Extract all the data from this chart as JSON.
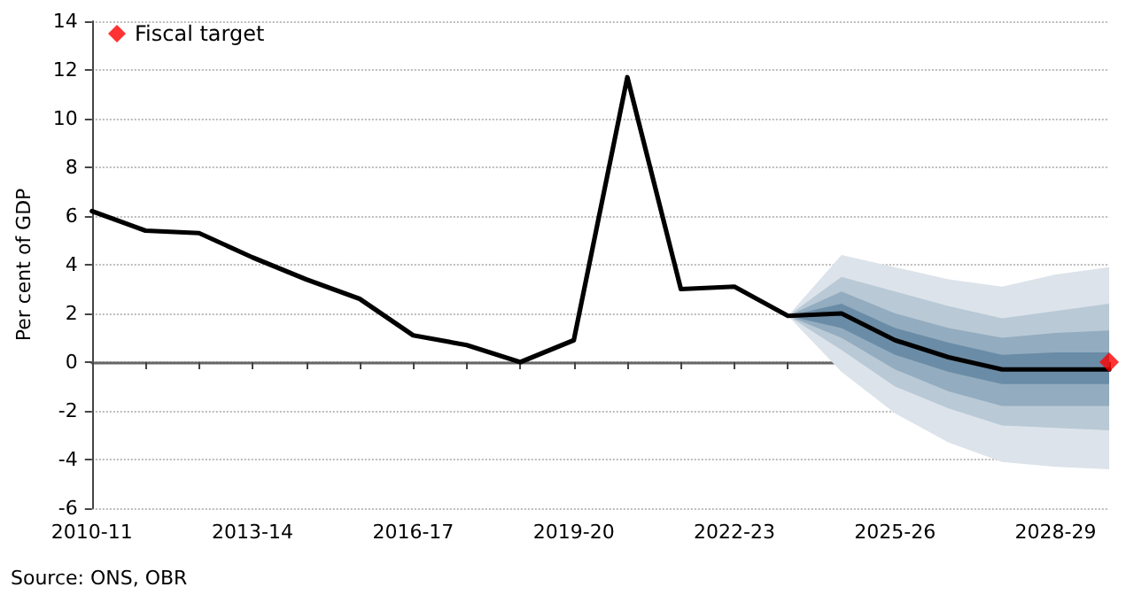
{
  "chart_data": {
    "type": "line",
    "ylabel": "Per cent of GDP",
    "annotations": [
      "Source: ONS, OBR"
    ],
    "categories": [
      "2010-11",
      null,
      null,
      "2013-14",
      null,
      null,
      "2016-17",
      null,
      null,
      "2019-20",
      null,
      null,
      "2022-23",
      null,
      null,
      "2025-26",
      null,
      null,
      "2028-29",
      null
    ],
    "series": [
      {
        "type": "area",
        "color": "#dce3ea",
        "values": [
          null,
          null,
          null,
          null,
          null,
          null,
          null,
          null,
          null,
          null,
          null,
          null,
          null,
          null,
          null,
          null,
          null,
          null,
          null,
          null
        ],
        "lower": [
          null,
          null,
          null,
          null,
          null,
          null,
          null,
          null,
          null,
          null,
          null,
          null,
          null,
          1.9,
          -0.4,
          -2.1,
          -3.3,
          -4.1,
          -4.3,
          -4.4
        ],
        "upper": [
          null,
          null,
          null,
          null,
          null,
          null,
          null,
          null,
          null,
          null,
          null,
          null,
          null,
          1.9,
          4.4,
          3.9,
          3.4,
          3.1,
          3.6,
          3.9
        ]
      },
      {
        "type": "area",
        "color": "#b9c9d6",
        "values": [
          null,
          null,
          null,
          null,
          null,
          null,
          null,
          null,
          null,
          null,
          null,
          null,
          null,
          null,
          null,
          null,
          null,
          null,
          null,
          null
        ],
        "lower": [
          null,
          null,
          null,
          null,
          null,
          null,
          null,
          null,
          null,
          null,
          null,
          null,
          null,
          1.9,
          0.5,
          -1.0,
          -1.9,
          -2.6,
          -2.7,
          -2.8
        ],
        "upper": [
          null,
          null,
          null,
          null,
          null,
          null,
          null,
          null,
          null,
          null,
          null,
          null,
          null,
          1.9,
          3.5,
          2.9,
          2.3,
          1.8,
          2.1,
          2.4
        ]
      },
      {
        "type": "area",
        "color": "#93acbf",
        "values": [
          null,
          null,
          null,
          null,
          null,
          null,
          null,
          null,
          null,
          null,
          null,
          null,
          null,
          null,
          null,
          null,
          null,
          null,
          null,
          null
        ],
        "lower": [
          null,
          null,
          null,
          null,
          null,
          null,
          null,
          null,
          null,
          null,
          null,
          null,
          null,
          1.9,
          1.0,
          -0.3,
          -1.2,
          -1.8,
          -1.8,
          -1.8
        ],
        "upper": [
          null,
          null,
          null,
          null,
          null,
          null,
          null,
          null,
          null,
          null,
          null,
          null,
          null,
          1.9,
          2.9,
          2.0,
          1.4,
          1.0,
          1.2,
          1.3
        ]
      },
      {
        "type": "area",
        "color": "#6b8ca6",
        "values": [
          null,
          null,
          null,
          null,
          null,
          null,
          null,
          null,
          null,
          null,
          null,
          null,
          null,
          null,
          null,
          null,
          null,
          null,
          null,
          null
        ],
        "lower": [
          null,
          null,
          null,
          null,
          null,
          null,
          null,
          null,
          null,
          null,
          null,
          null,
          null,
          1.9,
          1.4,
          0.3,
          -0.4,
          -0.9,
          -0.9,
          -0.9
        ],
        "upper": [
          null,
          null,
          null,
          null,
          null,
          null,
          null,
          null,
          null,
          null,
          null,
          null,
          null,
          1.9,
          2.4,
          1.4,
          0.8,
          0.3,
          0.4,
          0.4
        ]
      },
      {
        "color": "#000000",
        "values": [
          6.2,
          5.4,
          5.3,
          4.3,
          3.4,
          2.6,
          1.1,
          0.7,
          0.0,
          0.9,
          11.7,
          3.0,
          3.1,
          1.9,
          2.0,
          0.9,
          0.2,
          -0.3,
          -0.3,
          -0.3
        ]
      },
      {
        "type": "scatter",
        "name": "Fiscal target",
        "color": "#ff0000",
        "marker": "diamond",
        "values": [
          null,
          null,
          null,
          null,
          null,
          null,
          null,
          null,
          null,
          null,
          null,
          null,
          null,
          null,
          null,
          null,
          null,
          null,
          null,
          0
        ]
      }
    ],
    "ylim": [
      -6,
      14
    ],
    "yticks": [
      -6,
      -4,
      -2,
      0,
      2,
      4,
      6,
      8,
      10,
      12,
      14
    ],
    "grid": "y",
    "legend": "top left"
  }
}
